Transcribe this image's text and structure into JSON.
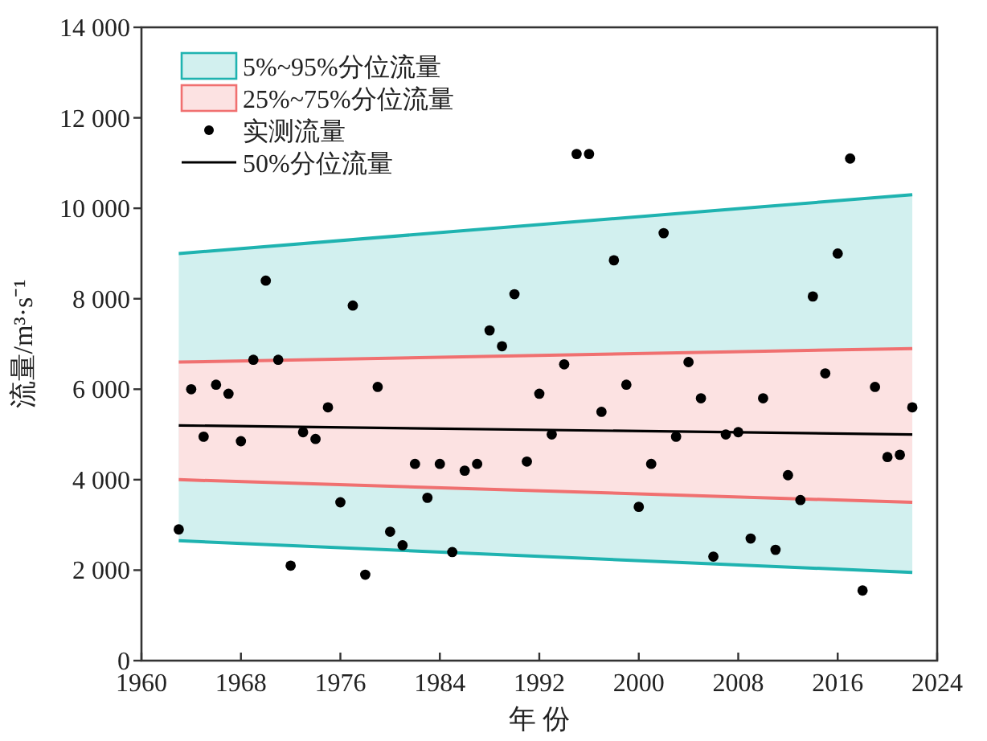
{
  "chart_data": {
    "type": "scatter",
    "xlabel": "年 份",
    "ylabel": "流量/m³·s⁻¹",
    "xlim": [
      1960,
      2024
    ],
    "xticks": [
      1960,
      1968,
      1976,
      1984,
      1992,
      2000,
      2008,
      2016,
      2024
    ],
    "ylim": [
      0,
      14000
    ],
    "yticks": [
      0,
      {
        "value": 2000,
        "label": "2 000"
      },
      {
        "value": 4000,
        "label": "4 000"
      },
      {
        "value": 6000,
        "label": "6 000"
      },
      {
        "value": 8000,
        "label": "8 000"
      },
      {
        "value": 10000,
        "label": "10 000"
      },
      {
        "value": 12000,
        "label": "12 000"
      },
      {
        "value": 14000,
        "label": "14 000"
      }
    ],
    "legend": "top left",
    "grid": false,
    "series": [
      {
        "type": "area",
        "name": "5%~95%分位流量",
        "color": "#1fb3b0",
        "x": [
          1963,
          2022
        ],
        "values": [
          9000,
          10300
        ]
      },
      {
        "type": "line",
        "color": "#1fb3b0",
        "line_style": "solid",
        "x": [
          1963,
          2022
        ],
        "values": [
          2650,
          1950
        ]
      },
      {
        "type": "area",
        "name": "25%~75%分位流量",
        "color": "#f07070",
        "x": [
          1963,
          2022
        ],
        "values": [
          6600,
          6900
        ]
      },
      {
        "type": "line",
        "color": "#f07070",
        "line_style": "solid",
        "x": [
          1963,
          2022
        ],
        "values": [
          4000,
          3500
        ]
      },
      {
        "type": "scatter",
        "name": "实测流量",
        "color": "#000000",
        "marker": "circle",
        "x": [
          1963,
          1964,
          1965,
          1966,
          1967,
          1968,
          1969,
          1970,
          1971,
          1972,
          1973,
          1974,
          1975,
          1976,
          1977,
          1978,
          1979,
          1980,
          1981,
          1982,
          1983,
          1984,
          1985,
          1986,
          1987,
          1988,
          1989,
          1990,
          1991,
          1992,
          1993,
          1994,
          1995,
          1996,
          1997,
          1998,
          1999,
          2000,
          2001,
          2002,
          2003,
          2004,
          2005,
          2006,
          2007,
          2008,
          2009,
          2010,
          2011,
          2012,
          2013,
          2014,
          2015,
          2016,
          2017,
          2018,
          2019,
          2020,
          2021,
          2022
        ],
        "values": [
          2900,
          6000,
          4950,
          6100,
          5900,
          4850,
          6650,
          8400,
          6650,
          2100,
          5050,
          4900,
          5600,
          3500,
          7850,
          1900,
          6050,
          2850,
          2550,
          4350,
          3600,
          4350,
          2400,
          4200,
          4350,
          7300,
          6950,
          8100,
          4400,
          5900,
          5000,
          6550,
          11200,
          11200,
          5500,
          8850,
          6100,
          3400,
          4350,
          9450,
          4950,
          6600,
          5800,
          2300,
          5000,
          5050,
          2700,
          5800,
          2450,
          4100,
          3550,
          8050,
          6350,
          9000,
          11100,
          1550,
          6050,
          4500,
          4550,
          5600
        ]
      },
      {
        "type": "line",
        "name": "50%分位流量",
        "color": "#000000",
        "line_style": "solid",
        "marker": "none",
        "x": [
          1963,
          2022
        ],
        "values": [
          5200,
          5000
        ]
      }
    ]
  }
}
